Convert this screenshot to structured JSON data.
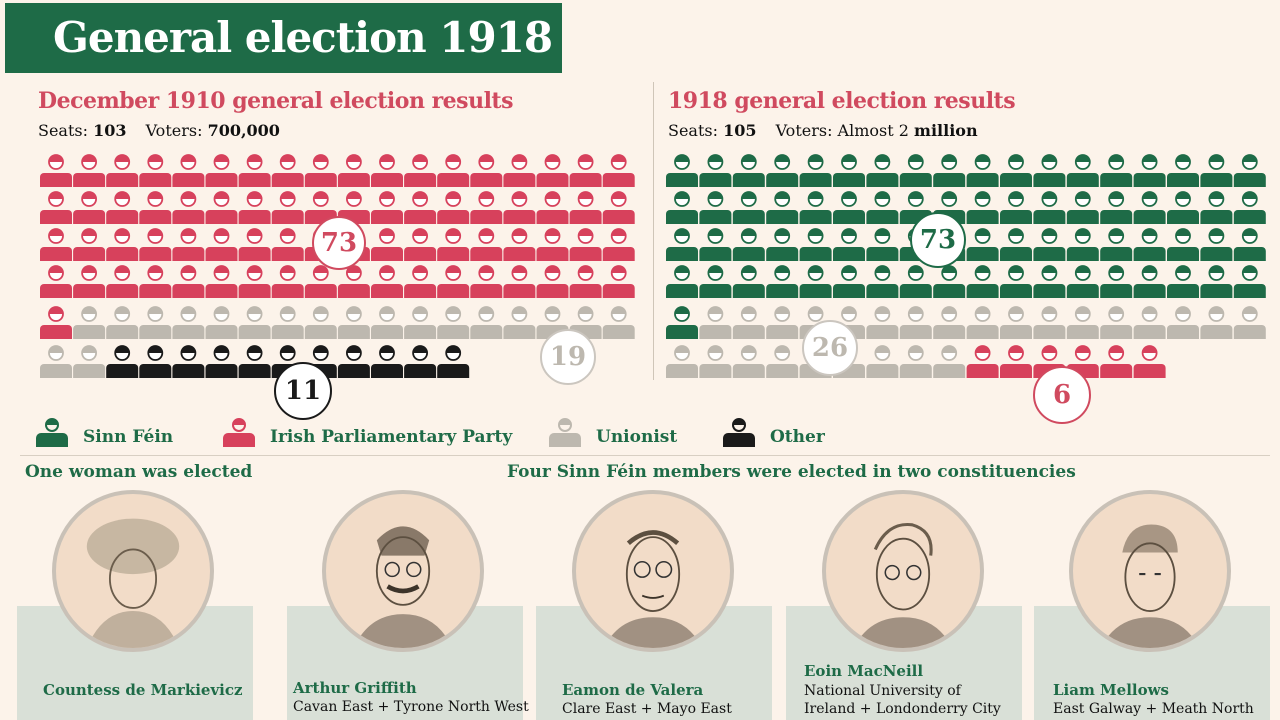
{
  "title": "General election 1918",
  "left_panel": {
    "title": "December 1910 general election results",
    "seats_label": "Seats:",
    "seats_value": "103",
    "voters_label": "Voters:",
    "voters_value": "700,000",
    "seat_groups": [
      {
        "party": "Irish Parliamentary Party",
        "count": 73
      },
      {
        "party": "Unionist",
        "count": 19
      },
      {
        "party": "Other",
        "count": 11
      }
    ],
    "badges": {
      "ipp": "73",
      "unionist": "19",
      "other": "11"
    }
  },
  "right_panel": {
    "title": "1918 general election results",
    "seats_label": "Seats:",
    "seats_value": "105",
    "voters_label": "Voters: Almost 2",
    "voters_value": "million",
    "seat_groups": [
      {
        "party": "Sinn Féin",
        "count": 73
      },
      {
        "party": "Unionist",
        "count": 26
      },
      {
        "party": "Irish Parliamentary Party",
        "count": 6
      }
    ],
    "badges": {
      "sinn_fein": "73",
      "unionist": "26",
      "ipp": "6"
    }
  },
  "legend": [
    {
      "label": "Sinn Féin",
      "color": "#1e6b47",
      "icon": "person-icon"
    },
    {
      "label": "Irish Parliamentary Party",
      "color": "#d7415c",
      "icon": "person-icon"
    },
    {
      "label": "Unionist",
      "color": "#bdb8af",
      "icon": "person-icon"
    },
    {
      "label": "Other",
      "color": "#1a1a1a",
      "icon": "person-icon"
    }
  ],
  "colors": {
    "sinn_fein": "#1e6b47",
    "ipp": "#d7415c",
    "unionist": "#bdb8af",
    "other": "#1a1a1a"
  },
  "women_heading": "One woman was elected",
  "dual_heading": "Four Sinn Féin members were elected in two constituencies",
  "people": [
    {
      "name": "Countess de Markievicz",
      "detail": ""
    },
    {
      "name": "Arthur Griffith",
      "detail": "Cavan East + Tyrone North West"
    },
    {
      "name": "Eamon de Valera",
      "detail": "Clare East + Mayo East"
    },
    {
      "name": "Eoin MacNeill",
      "detail": "National University of Ireland + Londonderry City"
    },
    {
      "name": "Liam Mellows",
      "detail": "East Galway + Meath North"
    }
  ]
}
